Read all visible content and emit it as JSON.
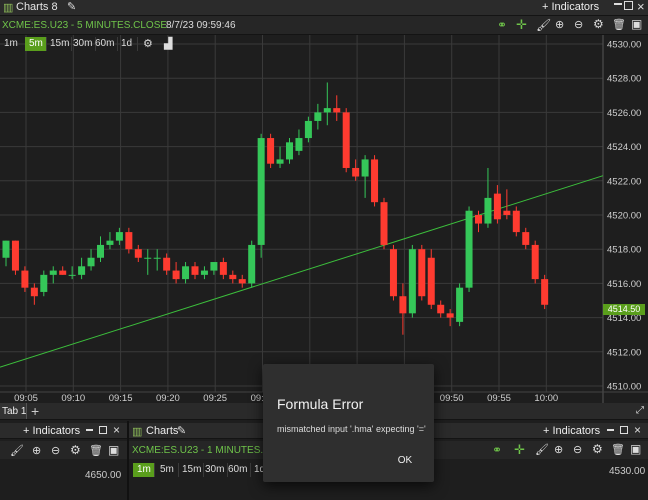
{
  "window": {
    "title": "Charts 8"
  },
  "header": {
    "indicators_label": "+ Indicators",
    "close_icon": "×"
  },
  "main_chart": {
    "symbol_line": "XCME:ES.U23 - 5 MINUTES.CLOSE",
    "timestamp": "8/7/23 09:59:46",
    "timeframes": [
      "1m",
      "5m",
      "15m",
      "30m",
      "60m",
      "1d"
    ],
    "active_timeframe": "5m",
    "price_tag": "4514.50",
    "y_ticks": [
      "4530.00",
      "4528.00",
      "4526.00",
      "4524.00",
      "4522.00",
      "4520.00",
      "4518.00",
      "4516.00",
      "4514.00",
      "4512.00",
      "4510.00"
    ],
    "x_ticks": [
      "09:05",
      "09:10",
      "09:15",
      "09:20",
      "09:25",
      "09:30",
      "09:35",
      "09:40",
      "09:45",
      "09:50",
      "09:55",
      "10:00"
    ]
  },
  "tabs": {
    "tab1": "Tab 1",
    "add": "+"
  },
  "bottom_left": {
    "indicators_label": "+ Indicators",
    "price": "4650.00"
  },
  "bottom_right": {
    "title": "Charts",
    "indicators_label": "+ Indicators",
    "symbol_line": "XCME:ES.U23 - 1 MINUTES.CLOSE",
    "timeframes": [
      "1m",
      "5m",
      "15m",
      "30m",
      "60m",
      "1d"
    ],
    "active_timeframe": "1m",
    "price": "4530.00"
  },
  "modal": {
    "title": "Formula Error",
    "message": "mismatched input '.hma' expecting '='",
    "ok": "OK"
  },
  "colors": {
    "up": "#35c759",
    "down": "#ff3b30",
    "accent": "#5a9e1c",
    "trend": "#3cbf3c"
  },
  "chart_data": {
    "type": "candlestick",
    "ylim": [
      4510,
      4530
    ],
    "candles": [
      {
        "o": 4517.5,
        "h": 4518.5,
        "l": 4517.0,
        "c": 4518.5
      },
      {
        "o": 4518.5,
        "h": 4518.5,
        "l": 4516.5,
        "c": 4516.75
      },
      {
        "o": 4516.75,
        "h": 4517.0,
        "l": 4515.5,
        "c": 4515.75
      },
      {
        "o": 4515.75,
        "h": 4516.0,
        "l": 4514.75,
        "c": 4515.25
      },
      {
        "o": 4515.5,
        "h": 4516.75,
        "l": 4515.25,
        "c": 4516.5
      },
      {
        "o": 4516.5,
        "h": 4517.0,
        "l": 4516.0,
        "c": 4516.75
      },
      {
        "o": 4516.75,
        "h": 4517.0,
        "l": 4516.5,
        "c": 4516.5
      },
      {
        "o": 4516.5,
        "h": 4517.0,
        "l": 4516.25,
        "c": 4516.5
      },
      {
        "o": 4516.5,
        "h": 4517.5,
        "l": 4516.25,
        "c": 4517.0
      },
      {
        "o": 4517.0,
        "h": 4518.0,
        "l": 4516.75,
        "c": 4517.5
      },
      {
        "o": 4517.5,
        "h": 4518.75,
        "l": 4517.25,
        "c": 4518.25
      },
      {
        "o": 4518.25,
        "h": 4519.0,
        "l": 4518.0,
        "c": 4518.5
      },
      {
        "o": 4518.5,
        "h": 4519.25,
        "l": 4518.25,
        "c": 4519.0
      },
      {
        "o": 4519.0,
        "h": 4519.25,
        "l": 4517.75,
        "c": 4518.0
      },
      {
        "o": 4518.0,
        "h": 4518.25,
        "l": 4517.25,
        "c": 4517.5
      },
      {
        "o": 4517.5,
        "h": 4518.0,
        "l": 4516.5,
        "c": 4517.5
      },
      {
        "o": 4517.5,
        "h": 4518.0,
        "l": 4516.75,
        "c": 4517.5
      },
      {
        "o": 4517.5,
        "h": 4517.75,
        "l": 4516.5,
        "c": 4516.75
      },
      {
        "o": 4516.75,
        "h": 4517.25,
        "l": 4516.0,
        "c": 4516.25
      },
      {
        "o": 4516.25,
        "h": 4517.25,
        "l": 4516.0,
        "c": 4517.0
      },
      {
        "o": 4517.0,
        "h": 4517.25,
        "l": 4516.25,
        "c": 4516.5
      },
      {
        "o": 4516.5,
        "h": 4517.0,
        "l": 4516.25,
        "c": 4516.75
      },
      {
        "o": 4516.75,
        "h": 4517.25,
        "l": 4516.5,
        "c": 4517.25
      },
      {
        "o": 4517.25,
        "h": 4517.5,
        "l": 4516.25,
        "c": 4516.5
      },
      {
        "o": 4516.5,
        "h": 4516.75,
        "l": 4516.0,
        "c": 4516.25
      },
      {
        "o": 4516.25,
        "h": 4516.5,
        "l": 4515.75,
        "c": 4516.0
      },
      {
        "o": 4516.0,
        "h": 4518.5,
        "l": 4515.75,
        "c": 4518.25
      },
      {
        "o": 4518.25,
        "h": 4524.75,
        "l": 4517.5,
        "c": 4524.5
      },
      {
        "o": 4524.5,
        "h": 4524.75,
        "l": 4522.75,
        "c": 4523.0
      },
      {
        "o": 4523.0,
        "h": 4524.0,
        "l": 4522.75,
        "c": 4523.25
      },
      {
        "o": 4523.25,
        "h": 4524.5,
        "l": 4523.0,
        "c": 4524.25
      },
      {
        "o": 4523.75,
        "h": 4525.0,
        "l": 4523.5,
        "c": 4524.5
      },
      {
        "o": 4524.5,
        "h": 4525.75,
        "l": 4524.25,
        "c": 4525.5
      },
      {
        "o": 4525.5,
        "h": 4526.5,
        "l": 4525.0,
        "c": 4526.0
      },
      {
        "o": 4526.0,
        "h": 4527.75,
        "l": 4525.25,
        "c": 4526.25
      },
      {
        "o": 4526.25,
        "h": 4527.0,
        "l": 4525.5,
        "c": 4526.0
      },
      {
        "o": 4526.0,
        "h": 4526.25,
        "l": 4522.5,
        "c": 4522.75
      },
      {
        "o": 4522.75,
        "h": 4523.25,
        "l": 4522.0,
        "c": 4522.25
      },
      {
        "o": 4522.25,
        "h": 4523.5,
        "l": 4521.0,
        "c": 4523.25
      },
      {
        "o": 4523.25,
        "h": 4523.5,
        "l": 4520.5,
        "c": 4520.75
      },
      {
        "o": 4520.75,
        "h": 4521.0,
        "l": 4518.0,
        "c": 4518.25
      },
      {
        "o": 4518.0,
        "h": 4518.25,
        "l": 4515.0,
        "c": 4515.25
      },
      {
        "o": 4515.25,
        "h": 4516.0,
        "l": 4513.0,
        "c": 4514.25
      },
      {
        "o": 4514.25,
        "h": 4518.25,
        "l": 4514.0,
        "c": 4518.0
      },
      {
        "o": 4518.0,
        "h": 4518.25,
        "l": 4515.0,
        "c": 4515.25
      },
      {
        "o": 4517.5,
        "h": 4518.0,
        "l": 4514.5,
        "c": 4514.75
      },
      {
        "o": 4514.75,
        "h": 4515.0,
        "l": 4514.0,
        "c": 4514.25
      },
      {
        "o": 4514.25,
        "h": 4514.5,
        "l": 4513.5,
        "c": 4514.0
      },
      {
        "o": 4513.75,
        "h": 4516.0,
        "l": 4513.5,
        "c": 4515.75
      },
      {
        "o": 4515.75,
        "h": 4520.5,
        "l": 4515.5,
        "c": 4520.25
      },
      {
        "o": 4520.0,
        "h": 4520.25,
        "l": 4519.0,
        "c": 4519.5
      },
      {
        "o": 4519.5,
        "h": 4522.75,
        "l": 4519.25,
        "c": 4521.0
      },
      {
        "o": 4521.25,
        "h": 4521.75,
        "l": 4519.5,
        "c": 4519.75
      },
      {
        "o": 4520.25,
        "h": 4521.5,
        "l": 4519.75,
        "c": 4520.0
      },
      {
        "o": 4520.25,
        "h": 4520.5,
        "l": 4518.75,
        "c": 4519.0
      },
      {
        "o": 4519.0,
        "h": 4519.25,
        "l": 4518.0,
        "c": 4518.25
      },
      {
        "o": 4518.25,
        "h": 4518.5,
        "l": 4516.0,
        "c": 4516.25
      },
      {
        "o": 4516.25,
        "h": 4516.5,
        "l": 4514.5,
        "c": 4514.75
      }
    ]
  }
}
